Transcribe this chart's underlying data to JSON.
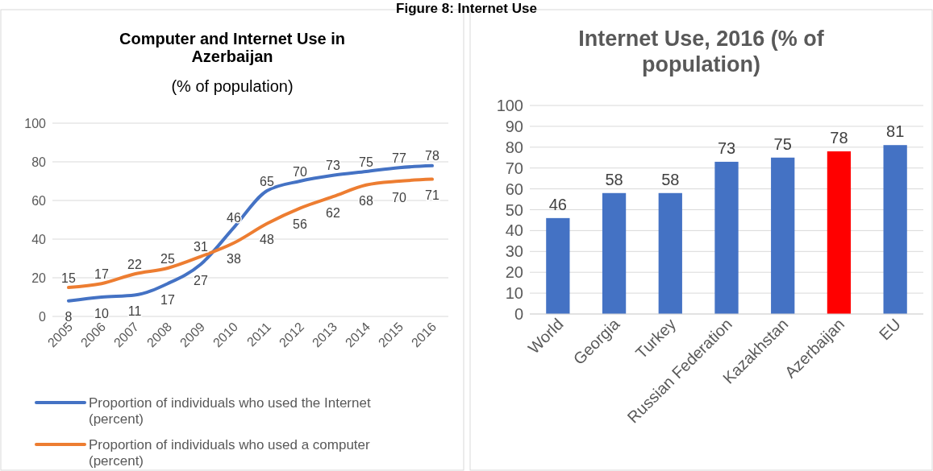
{
  "chart_data": [
    {
      "type": "line",
      "title": "Computer and Internet Use in Azerbaijan",
      "subtitle": "(% of population)",
      "annotations": [
        "Figure 8: Internet Use"
      ],
      "categories": [
        "2005",
        "2006",
        "2007",
        "2008",
        "2009",
        "2010",
        "2011",
        "2012",
        "2013",
        "2014",
        "2015",
        "2016"
      ],
      "series": [
        {
          "name": "Proportion of individuals who used the Internet (percent)",
          "color": "#4472c4",
          "values": [
            8,
            10,
            11,
            17,
            27,
            46,
            65,
            70,
            73,
            75,
            77,
            78
          ]
        },
        {
          "name": "Proportion of individuals who used a computer (percent)",
          "color": "#ed7d31",
          "values": [
            15,
            17,
            22,
            25,
            31,
            38,
            48,
            56,
            62,
            68,
            70,
            71
          ]
        }
      ],
      "ylim": [
        0,
        100
      ],
      "yticks": [
        0,
        20,
        40,
        60,
        80,
        100
      ],
      "grid": "y",
      "legend": "bottom",
      "data_labels": true,
      "marker": "none",
      "line_style": "solid"
    },
    {
      "type": "bar",
      "title": "Internet Use, 2016 (% of population)",
      "categories": [
        "World",
        "Georgia",
        "Turkey",
        "Russian Federation",
        "Kazakhstan",
        "Azerbaijan",
        "EU"
      ],
      "values": [
        46,
        58,
        58,
        73,
        75,
        78,
        81
      ],
      "colors": [
        "#4472c4",
        "#4472c4",
        "#4472c4",
        "#4472c4",
        "#4472c4",
        "#ff0000",
        "#4472c4"
      ],
      "ylim": [
        0,
        100
      ],
      "yticks": [
        0,
        10,
        20,
        30,
        40,
        50,
        60,
        70,
        80,
        90,
        100
      ],
      "grid": "y",
      "data_labels": true
    }
  ]
}
